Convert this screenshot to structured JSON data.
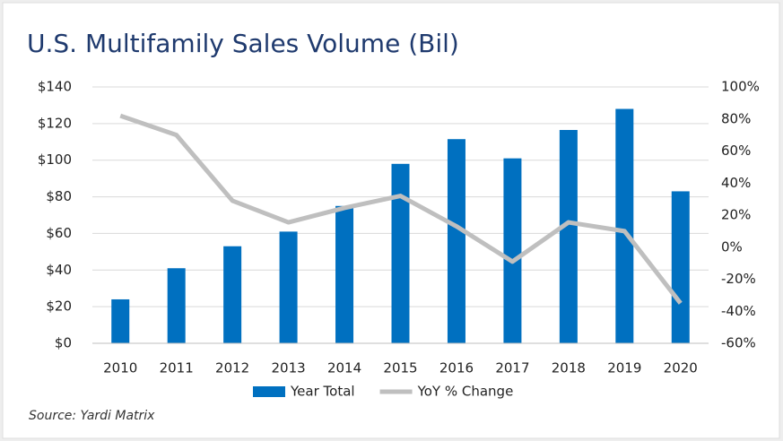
{
  "chart_data": {
    "type": "bar",
    "title": "U.S. Multifamily Sales Volume (Bil)",
    "source": "Source: Yardi Matrix",
    "categories": [
      "2010",
      "2011",
      "2012",
      "2013",
      "2014",
      "2015",
      "2016",
      "2017",
      "2018",
      "2019",
      "2020"
    ],
    "series": [
      {
        "name": "Year Total",
        "type": "bar",
        "color": "#0070c0",
        "values": [
          24,
          41,
          53,
          61,
          75,
          98,
          111.5,
          101,
          116.5,
          128,
          83
        ]
      },
      {
        "name": "YoY % Change",
        "type": "line",
        "axis": "y2",
        "color": "#bfbfbf",
        "values": [
          82,
          70,
          29,
          15.5,
          24.5,
          32,
          13,
          -9,
          15.5,
          10,
          -35
        ]
      }
    ],
    "ylim": [
      0,
      140
    ],
    "yticks": [
      {
        "value": 0,
        "label": "$0"
      },
      {
        "value": 20,
        "label": "$20"
      },
      {
        "value": 40,
        "label": "$40"
      },
      {
        "value": 60,
        "label": "$60"
      },
      {
        "value": 80,
        "label": "$80"
      },
      {
        "value": 100,
        "label": "$100"
      },
      {
        "value": 120,
        "label": "$120"
      },
      {
        "value": 140,
        "label": "$140"
      }
    ],
    "y2lim": [
      -60,
      100
    ],
    "y2ticks": [
      {
        "value": -60,
        "label": "-60%"
      },
      {
        "value": -40,
        "label": "-40%"
      },
      {
        "value": -20,
        "label": "-20%"
      },
      {
        "value": 0,
        "label": "0%"
      },
      {
        "value": 20,
        "label": "20%"
      },
      {
        "value": 40,
        "label": "40%"
      },
      {
        "value": 60,
        "label": "60%"
      },
      {
        "value": 80,
        "label": "80%"
      },
      {
        "value": 100,
        "label": "100%"
      }
    ],
    "grid": true
  }
}
